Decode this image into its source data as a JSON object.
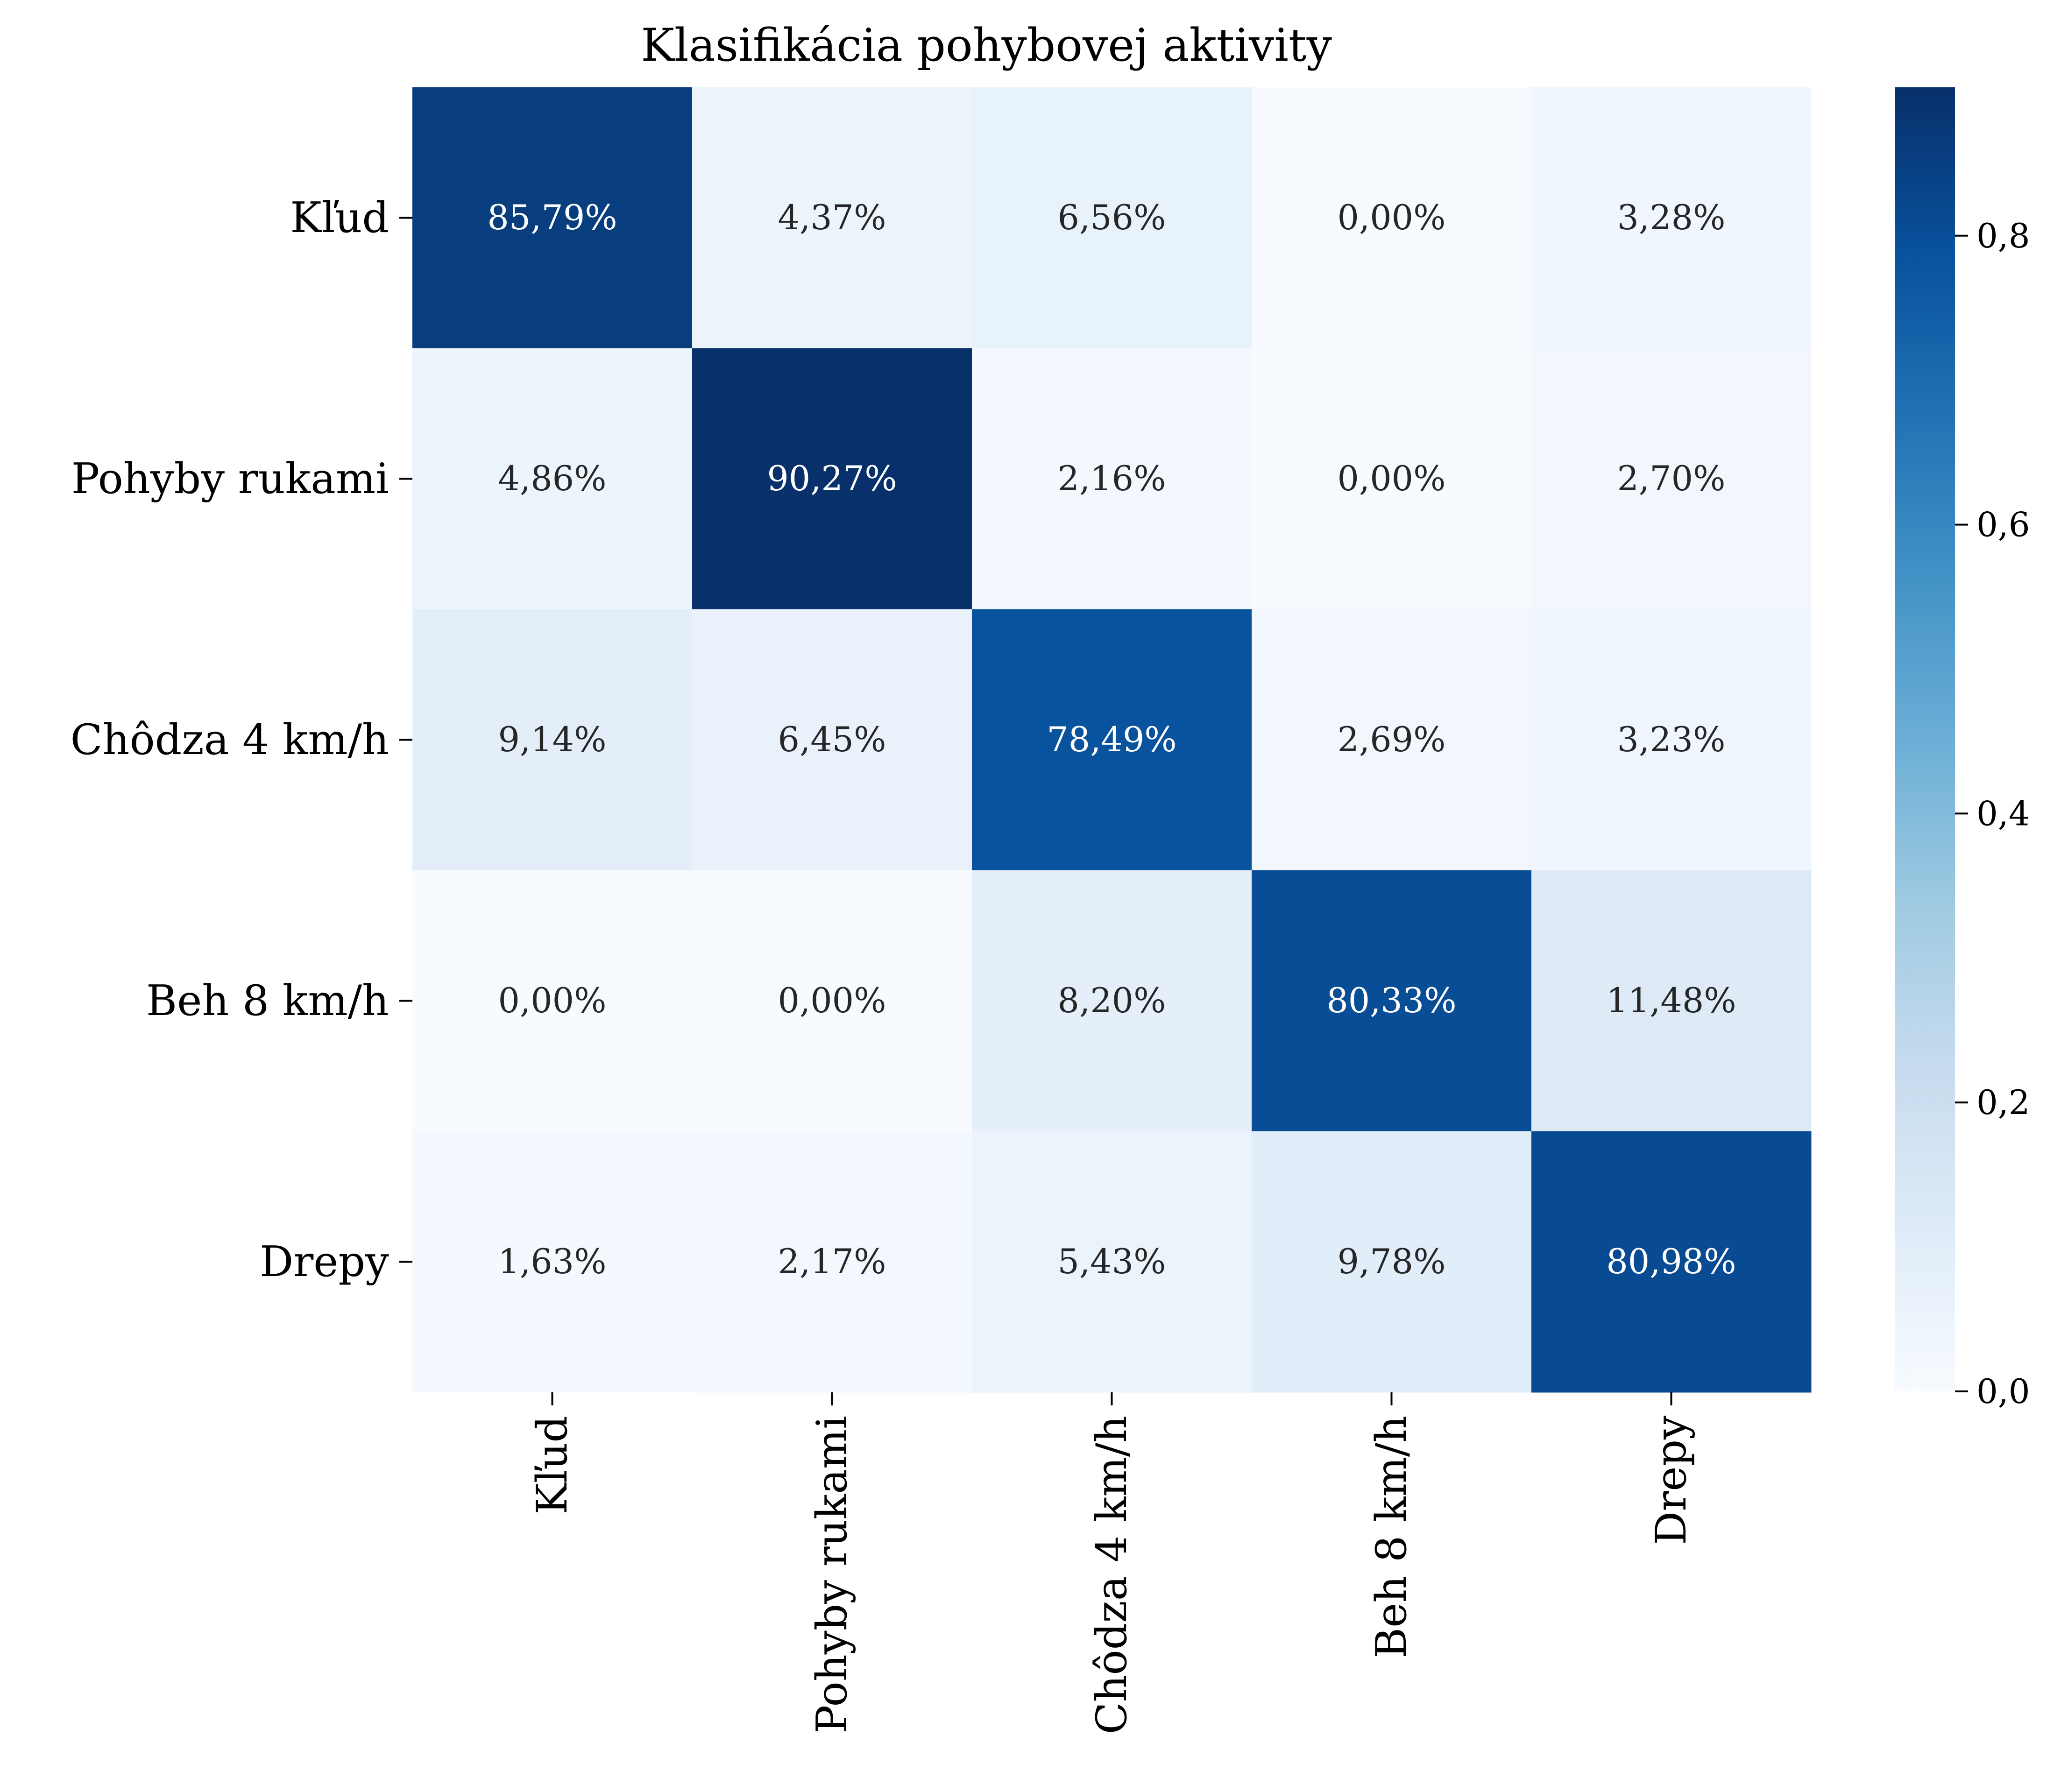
{
  "chart_data": {
    "type": "heatmap",
    "title": "Klasifikácia pohybovej aktivity",
    "xlabel": "",
    "ylabel": "",
    "rows": [
      "Kľud",
      "Pohyby rukami",
      "Chôdza 4 km/h",
      "Beh 8 km/h",
      "Drepy"
    ],
    "columns": [
      "Kľud",
      "Pohyby rukami",
      "Chôdza 4 km/h",
      "Beh 8 km/h",
      "Drepy"
    ],
    "values": [
      [
        0.8579,
        0.0437,
        0.0656,
        0.0,
        0.0328
      ],
      [
        0.0486,
        0.9027,
        0.0216,
        0.0,
        0.027
      ],
      [
        0.0914,
        0.0645,
        0.7849,
        0.0269,
        0.0323
      ],
      [
        0.0,
        0.0,
        0.082,
        0.8033,
        0.1148
      ],
      [
        0.0163,
        0.0217,
        0.0543,
        0.0978,
        0.8098
      ]
    ],
    "cell_labels": [
      [
        "85,79%",
        "4,37%",
        "6,56%",
        "0,00%",
        "3,28%"
      ],
      [
        "4,86%",
        "90,27%",
        "2,16%",
        "0,00%",
        "2,70%"
      ],
      [
        "9,14%",
        "6,45%",
        "78,49%",
        "2,69%",
        "3,23%"
      ],
      [
        "0,00%",
        "0,00%",
        "8,20%",
        "80,33%",
        "11,48%"
      ],
      [
        "1,63%",
        "2,17%",
        "5,43%",
        "9,78%",
        "80,98%"
      ]
    ],
    "colorbar": {
      "colormap": "Blues",
      "range": [
        0,
        0.9027
      ],
      "ticks": [
        0.0,
        0.2,
        0.4,
        0.6,
        0.8
      ],
      "tick_labels": [
        "0,0",
        "0,2",
        "0,4",
        "0,6",
        "0,8"
      ]
    },
    "colors": {
      "low": "#f7fbff",
      "high": "#08306b",
      "text_dark": "#262626",
      "text_light": "#ffffff",
      "axis": "#000000"
    },
    "grid": false,
    "legend": "colorbar-right"
  }
}
